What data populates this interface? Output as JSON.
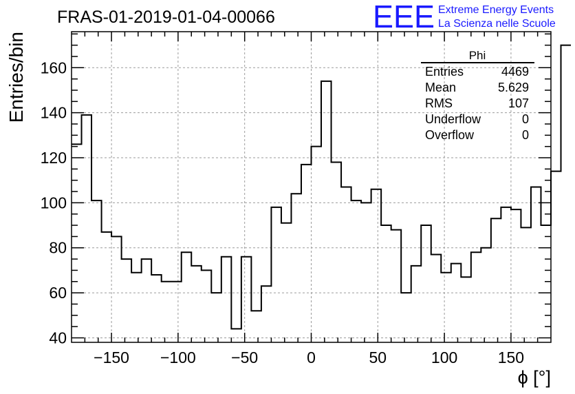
{
  "chart_data": {
    "type": "histogram",
    "title": "FRAS-01-2019-01-04-00066",
    "xlabel": "ϕ [°]",
    "ylabel": "Entries/bin",
    "xlim": [
      -180,
      180
    ],
    "ylim": [
      38,
      176
    ],
    "grid": true,
    "x_ticks": [
      -150,
      -100,
      -50,
      0,
      50,
      100,
      150
    ],
    "x_tick_labels": [
      "−150",
      "−100",
      "−50",
      "0",
      "50",
      "100",
      "150"
    ],
    "y_ticks": [
      40,
      60,
      80,
      100,
      120,
      140,
      160
    ],
    "y_tick_labels": [
      "40",
      "60",
      "80",
      "100",
      "120",
      "140",
      "160"
    ],
    "bin_width": 7.5,
    "bin_edges_start": -180,
    "values": [
      126,
      139,
      101,
      87,
      85,
      75,
      69,
      75,
      68,
      65,
      65,
      78,
      72,
      70,
      60,
      76,
      44,
      76,
      52,
      63,
      98,
      91,
      104,
      117,
      125,
      154,
      118,
      107,
      101,
      100,
      106,
      90,
      88,
      60,
      72,
      90,
      77,
      69,
      73,
      67,
      78,
      80,
      93,
      98,
      97,
      89,
      107,
      90,
      114,
      170
    ],
    "stats": {
      "title": "Phi",
      "rows": [
        {
          "label": "Entries",
          "value": "4469"
        },
        {
          "label": "Mean",
          "value": "5.629"
        },
        {
          "label": "RMS",
          "value": "107"
        },
        {
          "label": "Underflow",
          "value": "0"
        },
        {
          "label": "Overflow",
          "value": "0"
        }
      ]
    }
  },
  "logo": {
    "mark": "EEE",
    "line1": "Extreme Energy Events",
    "line2": "La Scienza nelle Scuole",
    "color": "#1a1aff"
  }
}
